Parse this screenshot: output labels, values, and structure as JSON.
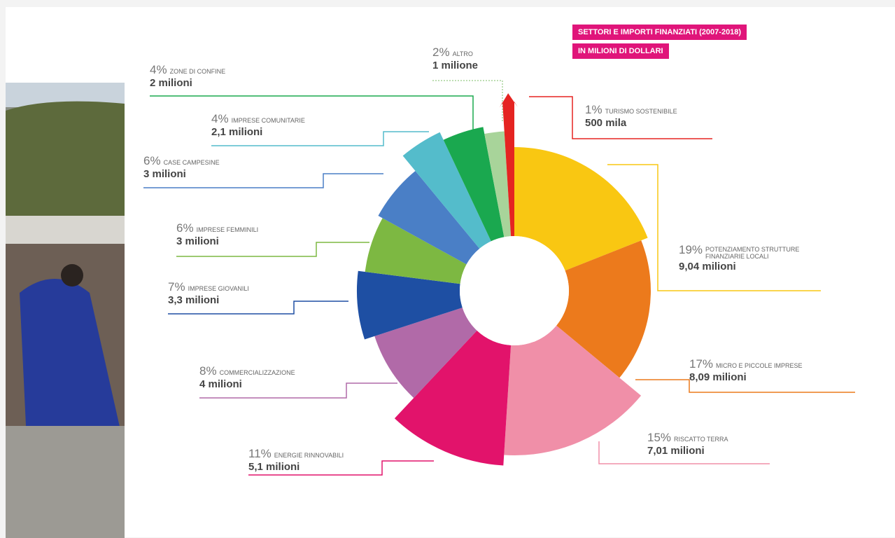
{
  "chart_data": {
    "type": "pie",
    "title": [
      "SETTORI E IMPORTI FINANZIATI (2007-2018)",
      "IN MILIONI DI DOLLARI"
    ],
    "categories": [
      "POTENZIAMENTO STRUTTURE FINANZIARIE LOCALI",
      "MICRO E PICCOLE IMPRESE",
      "RISCATTO TERRA",
      "ENERGIE RINNOVABILI",
      "COMMERCIALIZZAZIONE",
      "IMPRESE GIOVANILI",
      "IMPRESE FEMMINILI",
      "CASE CAMPESINE",
      "IMPRESE COMUNITARIE",
      "ZONE DI CONFINE",
      "ALTRO",
      "TURISMO SOSTENIBILE"
    ],
    "values": [
      19,
      17,
      15,
      11,
      8,
      7,
      6,
      6,
      4,
      4,
      2,
      1
    ],
    "value_labels": [
      "19%",
      "17%",
      "15%",
      "11%",
      "8%",
      "7%",
      "6%",
      "6%",
      "4%",
      "4%",
      "2%",
      "1%"
    ],
    "amounts": [
      "9,04 milioni",
      "8,09 milioni",
      "7,01 milioni",
      "5,1 milioni",
      "4 milioni",
      "3,3 milioni",
      "3 milioni",
      "3 milioni",
      "2,1 milioni",
      "2 milioni",
      "1 milione",
      "500 mila"
    ],
    "colors": [
      "#f9c712",
      "#ec7a1c",
      "#f08fa8",
      "#e2136b",
      "#b16aa8",
      "#1e4fa3",
      "#7db842",
      "#4a7fc6",
      "#54bccb",
      "#1aa84f",
      "#a8d49a",
      "#e52421"
    ]
  }
}
